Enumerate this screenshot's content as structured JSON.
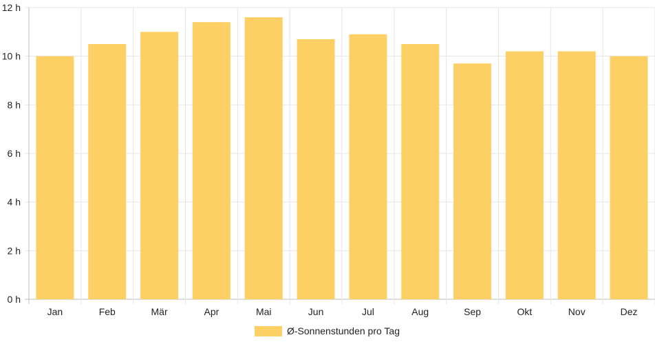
{
  "chart_data": {
    "type": "bar",
    "categories": [
      "Jan",
      "Feb",
      "Mär",
      "Apr",
      "Mai",
      "Jun",
      "Jul",
      "Aug",
      "Sep",
      "Okt",
      "Nov",
      "Dez"
    ],
    "series": [
      {
        "name": "Ø-Sonnenstunden pro Tag",
        "values": [
          10.0,
          10.5,
          11.0,
          11.4,
          11.6,
          10.7,
          10.9,
          10.5,
          9.7,
          10.2,
          10.2,
          10.0
        ],
        "color": "#fdd066"
      }
    ],
    "y_ticks": [
      "0 h",
      "2 h",
      "4 h",
      "6 h",
      "8 h",
      "10 h",
      "12 h"
    ],
    "ylim": [
      0,
      12
    ],
    "grid": true,
    "legend_position": "bottom"
  }
}
